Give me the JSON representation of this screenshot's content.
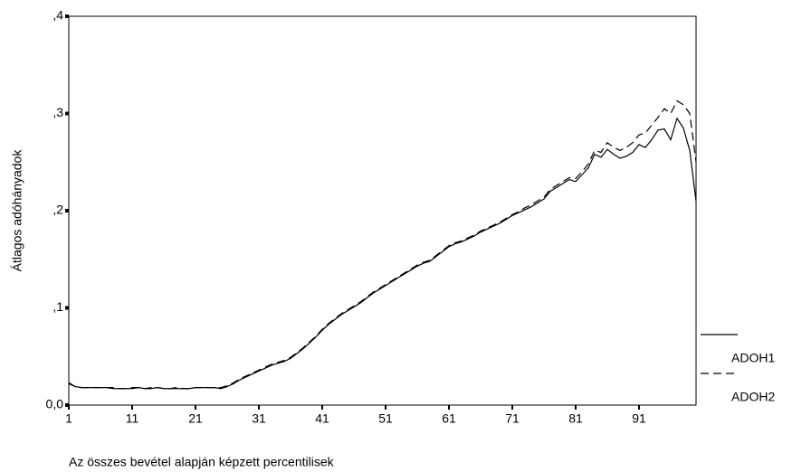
{
  "chart_data": {
    "type": "line",
    "xlabel": "Az összes bevétel alapján képzett percentilisek",
    "ylabel": "Átlagos adóhányadok",
    "x": [
      1,
      2,
      3,
      4,
      5,
      6,
      7,
      8,
      9,
      10,
      11,
      12,
      13,
      14,
      15,
      16,
      17,
      18,
      19,
      20,
      21,
      22,
      23,
      24,
      25,
      26,
      27,
      28,
      29,
      30,
      31,
      32,
      33,
      34,
      35,
      36,
      37,
      38,
      39,
      40,
      41,
      42,
      43,
      44,
      45,
      46,
      47,
      48,
      49,
      50,
      51,
      52,
      53,
      54,
      55,
      56,
      57,
      58,
      59,
      60,
      61,
      62,
      63,
      64,
      65,
      66,
      67,
      68,
      69,
      70,
      71,
      72,
      73,
      74,
      75,
      76,
      77,
      78,
      79,
      80,
      81,
      82,
      83,
      84,
      85,
      86,
      87,
      88,
      89,
      90,
      91,
      92,
      93,
      94,
      95,
      96,
      97,
      98,
      99,
      100
    ],
    "series": [
      {
        "name": "ADOH1",
        "color": "#000000",
        "style": "solid",
        "values": [
          0.022,
          0.019,
          0.018,
          0.018,
          0.018,
          0.018,
          0.018,
          0.017,
          0.017,
          0.017,
          0.017,
          0.018,
          0.017,
          0.017,
          0.018,
          0.017,
          0.017,
          0.017,
          0.017,
          0.017,
          0.018,
          0.018,
          0.018,
          0.018,
          0.017,
          0.019,
          0.022,
          0.026,
          0.029,
          0.032,
          0.035,
          0.038,
          0.041,
          0.043,
          0.045,
          0.048,
          0.053,
          0.058,
          0.064,
          0.07,
          0.077,
          0.083,
          0.088,
          0.093,
          0.097,
          0.101,
          0.105,
          0.11,
          0.115,
          0.119,
          0.123,
          0.127,
          0.131,
          0.135,
          0.139,
          0.143,
          0.146,
          0.148,
          0.153,
          0.158,
          0.163,
          0.166,
          0.168,
          0.171,
          0.174,
          0.178,
          0.181,
          0.184,
          0.187,
          0.191,
          0.195,
          0.198,
          0.201,
          0.204,
          0.208,
          0.212,
          0.22,
          0.224,
          0.228,
          0.232,
          0.23,
          0.237,
          0.244,
          0.258,
          0.255,
          0.263,
          0.258,
          0.254,
          0.256,
          0.26,
          0.268,
          0.265,
          0.273,
          0.283,
          0.284,
          0.273,
          0.295,
          0.285,
          0.262,
          0.21
        ]
      },
      {
        "name": "ADOH2",
        "color": "#000000",
        "style": "dashed",
        "values": [
          0.023,
          0.019,
          0.018,
          0.018,
          0.018,
          0.018,
          0.018,
          0.018,
          0.017,
          0.017,
          0.018,
          0.018,
          0.017,
          0.018,
          0.018,
          0.017,
          0.017,
          0.018,
          0.017,
          0.017,
          0.018,
          0.018,
          0.018,
          0.018,
          0.018,
          0.02,
          0.023,
          0.027,
          0.03,
          0.033,
          0.036,
          0.039,
          0.042,
          0.044,
          0.046,
          0.049,
          0.054,
          0.059,
          0.065,
          0.071,
          0.078,
          0.084,
          0.089,
          0.094,
          0.098,
          0.102,
          0.106,
          0.111,
          0.116,
          0.12,
          0.124,
          0.128,
          0.132,
          0.136,
          0.14,
          0.144,
          0.147,
          0.149,
          0.154,
          0.159,
          0.164,
          0.167,
          0.169,
          0.172,
          0.175,
          0.179,
          0.182,
          0.185,
          0.188,
          0.192,
          0.196,
          0.199,
          0.203,
          0.206,
          0.21,
          0.214,
          0.222,
          0.226,
          0.23,
          0.234,
          0.233,
          0.24,
          0.248,
          0.262,
          0.26,
          0.27,
          0.265,
          0.262,
          0.265,
          0.27,
          0.278,
          0.28,
          0.288,
          0.296,
          0.305,
          0.3,
          0.313,
          0.309,
          0.3,
          0.25
        ]
      }
    ],
    "xlim": [
      1,
      100
    ],
    "xticks": [
      1,
      11,
      21,
      31,
      41,
      51,
      61,
      71,
      81,
      91
    ],
    "ylim": [
      0,
      0.4
    ],
    "yticks": [
      {
        "value": 0,
        "label": "0,0"
      },
      {
        "value": 0.1,
        "label": ",1"
      },
      {
        "value": 0.2,
        "label": ",2"
      },
      {
        "value": 0.3,
        "label": ",3"
      },
      {
        "value": 0.4,
        "label": ",4"
      }
    ],
    "legend": "right"
  }
}
